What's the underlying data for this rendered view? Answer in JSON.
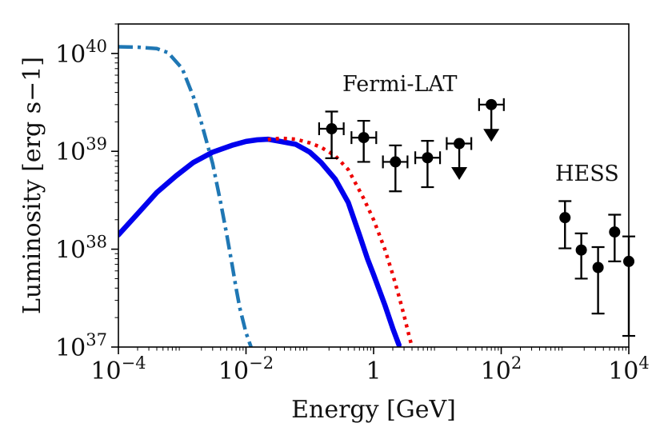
{
  "chart_data": {
    "type": "scatter",
    "title": "",
    "xlabel": "Energy [GeV]",
    "ylabel": "Luminosity [erg s−1]",
    "xscale": "log",
    "yscale": "log",
    "xlim": [
      0.0001,
      10000
    ],
    "ylim": [
      1e+37,
      2e+40
    ],
    "x_ticks": [
      {
        "value": 0.0001,
        "base": "10",
        "exp": "−4"
      },
      {
        "value": 0.01,
        "base": "10",
        "exp": "−2"
      },
      {
        "value": 1,
        "base": "1",
        "exp": ""
      },
      {
        "value": 100,
        "base": "10",
        "exp": "2"
      },
      {
        "value": 10000,
        "base": "10",
        "exp": "4"
      }
    ],
    "y_ticks": [
      {
        "value": 1e+37,
        "base": "10",
        "exp": "37"
      },
      {
        "value": 1e+38,
        "base": "10",
        "exp": "38"
      },
      {
        "value": 1e+39,
        "base": "10",
        "exp": "39"
      },
      {
        "value": 1e+40,
        "base": "10",
        "exp": "40"
      }
    ],
    "annotations": {
      "fermi": "Fermi-LAT",
      "hess": "HESS"
    },
    "series": [
      {
        "name": "dash-dot",
        "style": "dashdot",
        "color": "#1f77b4",
        "x": [
          0.0001,
          0.0002,
          0.0004,
          0.0006,
          0.001,
          0.0015,
          0.002,
          0.003,
          0.004,
          0.005,
          0.006,
          0.007,
          0.008,
          0.01,
          0.012
        ],
        "y": [
          1.17e+40,
          1.16e+40,
          1.12e+40,
          1.02e+40,
          7e+39,
          3.6e+39,
          1.95e+39,
          7.5e+38,
          3e+38,
          1.4e+38,
          7.2e+37,
          4e+37,
          2.5e+37,
          1.4e+37,
          1e+37
        ]
      },
      {
        "name": "solid",
        "style": "solid",
        "color": "#0000ee",
        "x": [
          0.0001,
          0.0002,
          0.0004,
          0.0008,
          0.0015,
          0.003,
          0.006,
          0.01,
          0.015,
          0.022,
          0.035,
          0.06,
          0.1,
          0.15,
          0.25,
          0.4,
          0.6,
          0.8,
          1.0,
          1.5,
          2.0,
          2.5
        ],
        "y": [
          1.4e+38,
          2.3e+38,
          3.8e+38,
          5.6e+38,
          7.7e+38,
          9.8e+38,
          1.15e+39,
          1.26e+39,
          1.31e+39,
          1.33e+39,
          1.26e+39,
          1.18e+39,
          9.8e+38,
          7.7e+38,
          5.2e+38,
          3e+38,
          1.4e+38,
          8e+37,
          5.5e+37,
          2.7e+37,
          1.55e+37,
          1.05e+37
        ]
      },
      {
        "name": "dotted",
        "style": "dotted",
        "color": "#ee0000",
        "x": [
          0.022,
          0.035,
          0.06,
          0.1,
          0.15,
          0.25,
          0.4,
          0.7,
          1.0,
          1.5,
          2.0,
          2.5,
          3.0,
          3.5,
          4.0
        ],
        "y": [
          1.32e+39,
          1.36e+39,
          1.33e+39,
          1.22e+39,
          1.1e+39,
          9e+38,
          6.5e+38,
          3.3e+38,
          2e+38,
          1e+38,
          5.5e+37,
          3.3e+37,
          2.1e+37,
          1.4e+37,
          1e+37
        ]
      }
    ],
    "data_points": [
      {
        "group": "Fermi-LAT",
        "x": 0.22,
        "y": 1.7e+39,
        "xlo": 0.14,
        "xhi": 0.34,
        "ylo": 8.5e+38,
        "yhi": 2.55e+39,
        "upper_limit": false
      },
      {
        "group": "Fermi-LAT",
        "x": 0.7,
        "y": 1.38e+39,
        "xlo": 0.45,
        "xhi": 1.1,
        "ylo": 7.8e+38,
        "yhi": 2.05e+39,
        "upper_limit": false
      },
      {
        "group": "Fermi-LAT",
        "x": 2.2,
        "y": 7.8e+38,
        "xlo": 1.4,
        "xhi": 3.4,
        "ylo": 3.9e+38,
        "yhi": 1.15e+39,
        "upper_limit": false
      },
      {
        "group": "Fermi-LAT",
        "x": 7.0,
        "y": 8.6e+38,
        "xlo": 4.5,
        "xhi": 11,
        "ylo": 4.3e+38,
        "yhi": 1.28e+39,
        "upper_limit": false
      },
      {
        "group": "Fermi-LAT",
        "x": 22,
        "y": 1.2e+39,
        "xlo": 14,
        "xhi": 34,
        "ylo": 5.5e+38,
        "yhi": 1.2e+39,
        "upper_limit": true
      },
      {
        "group": "Fermi-LAT",
        "x": 70,
        "y": 3e+39,
        "xlo": 45,
        "xhi": 110,
        "ylo": 1.35e+39,
        "yhi": 3e+39,
        "upper_limit": true
      },
      {
        "group": "HESS",
        "x": 1000,
        "y": 2.1e+38,
        "xlo": 1000,
        "xhi": 1000,
        "ylo": 1.02e+38,
        "yhi": 3.1e+38,
        "upper_limit": false
      },
      {
        "group": "HESS",
        "x": 1800,
        "y": 9.8e+37,
        "xlo": 1800,
        "xhi": 1800,
        "ylo": 5e+37,
        "yhi": 1.45e+38,
        "upper_limit": false
      },
      {
        "group": "HESS",
        "x": 3300,
        "y": 6.5e+37,
        "xlo": 3300,
        "xhi": 3300,
        "ylo": 2.2e+37,
        "yhi": 1.05e+38,
        "upper_limit": false
      },
      {
        "group": "HESS",
        "x": 6000,
        "y": 1.5e+38,
        "xlo": 6000,
        "xhi": 6000,
        "ylo": 7.5e+37,
        "yhi": 2.25e+38,
        "upper_limit": false
      },
      {
        "group": "HESS",
        "x": 10000,
        "y": 7.5e+37,
        "xlo": 10000,
        "xhi": 10000,
        "ylo": 1.3e+37,
        "yhi": 1.35e+38,
        "upper_limit": false
      }
    ]
  }
}
